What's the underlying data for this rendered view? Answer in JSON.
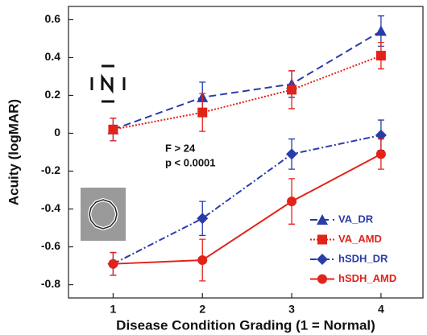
{
  "chart_data": {
    "type": "line",
    "x_label": "Disease Condition Grading (1 = Normal)",
    "y_label": "Acuity (logMAR)",
    "annotations": [
      "F > 24",
      "p < 0.0001"
    ],
    "x": [
      1,
      2,
      3,
      4
    ],
    "xlim": [
      0.5,
      4.47
    ],
    "xticks": [
      1,
      2,
      3,
      4
    ],
    "ylim": [
      -0.87,
      0.67
    ],
    "yticks": [
      -0.8,
      -0.6,
      -0.4,
      -0.2,
      0,
      0.2,
      0.4,
      0.6
    ],
    "legend": "lower right",
    "series": [
      {
        "name": "VA_DR",
        "color": "#2a3ca8",
        "dash": "dashed",
        "marker": "triangle",
        "values": [
          0.02,
          0.19,
          0.26,
          0.54
        ],
        "errors": [
          0.06,
          0.08,
          0.07,
          0.08
        ]
      },
      {
        "name": "VA_AMD",
        "color": "#e2231a",
        "dash": "dotted",
        "marker": "square",
        "values": [
          0.02,
          0.11,
          0.23,
          0.41
        ],
        "errors": [
          0.06,
          0.1,
          0.1,
          0.07
        ]
      },
      {
        "name": "hSDH_DR",
        "color": "#2a3ca8",
        "dash": "dashdot",
        "marker": "diamond",
        "values": [
          -0.69,
          -0.45,
          -0.11,
          -0.01
        ],
        "errors": [
          0.06,
          0.09,
          0.08,
          0.08
        ]
      },
      {
        "name": "hSDH_AMD",
        "color": "#e2231a",
        "dash": "solid",
        "marker": "circle",
        "values": [
          -0.69,
          -0.67,
          -0.36,
          -0.11
        ],
        "errors": [
          0.06,
          0.11,
          0.12,
          0.08
        ]
      }
    ]
  }
}
